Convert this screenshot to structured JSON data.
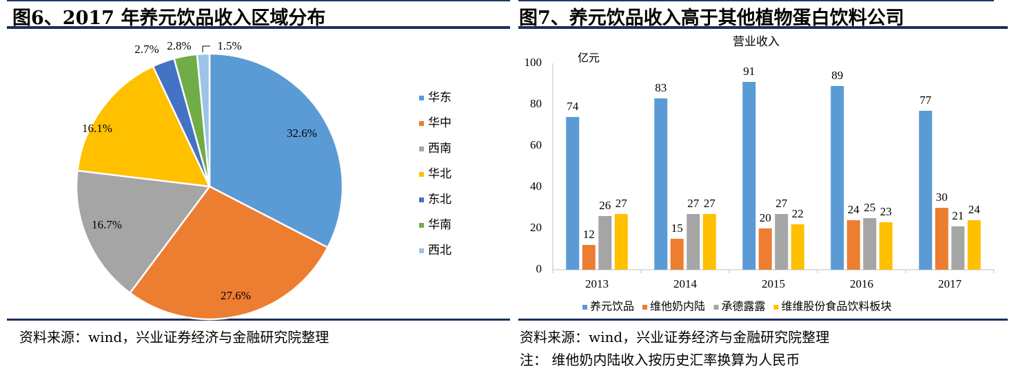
{
  "left": {
    "title": "图6、2017 年养元饮品收入区域分布",
    "source": "资料来源：wind，兴业证券经济与金融研究院整理"
  },
  "right": {
    "title": "图7、养元饮品收入高于其他植物蛋白饮料公司",
    "source": "资料来源：wind，兴业证券经济与金融研究院整理",
    "note": "注：  维他奶内陆收入按历史汇率换算为人民币"
  },
  "chart_data": [
    {
      "type": "pie",
      "categories": [
        "华东",
        "华中",
        "西南",
        "华北",
        "东北",
        "华南",
        "西北"
      ],
      "values": [
        32.6,
        27.6,
        16.7,
        16.1,
        2.7,
        2.8,
        1.5
      ],
      "labels": [
        "32.6%",
        "27.6%",
        "16.7%",
        "16.1%",
        "2.7%",
        "2.8%",
        "1.5%"
      ],
      "colors": [
        "#5b9bd5",
        "#ed7d31",
        "#a5a5a5",
        "#ffc000",
        "#4472c4",
        "#70ad47",
        "#9dc3e6"
      ],
      "legend": "right"
    },
    {
      "type": "bar",
      "title": "营业收入",
      "ylabel": "亿元",
      "categories": [
        "2013",
        "2014",
        "2015",
        "2016",
        "2017"
      ],
      "ylim": [
        0,
        100
      ],
      "yticks": [
        "0",
        "20",
        "40",
        "60",
        "80",
        "100"
      ],
      "legend": "bottom",
      "series": [
        {
          "name": "养元饮品",
          "color": "#5b9bd5",
          "values": [
            74,
            83,
            91,
            89,
            77
          ]
        },
        {
          "name": "维他奶内陆",
          "color": "#ed7d31",
          "values": [
            12,
            15,
            20,
            24,
            30
          ]
        },
        {
          "name": "承德露露",
          "color": "#a5a5a5",
          "values": [
            26,
            27,
            27,
            25,
            21
          ]
        },
        {
          "name": "维维股份食品饮料板块",
          "color": "#ffc000",
          "values": [
            27,
            27,
            22,
            23,
            24
          ]
        }
      ]
    }
  ]
}
